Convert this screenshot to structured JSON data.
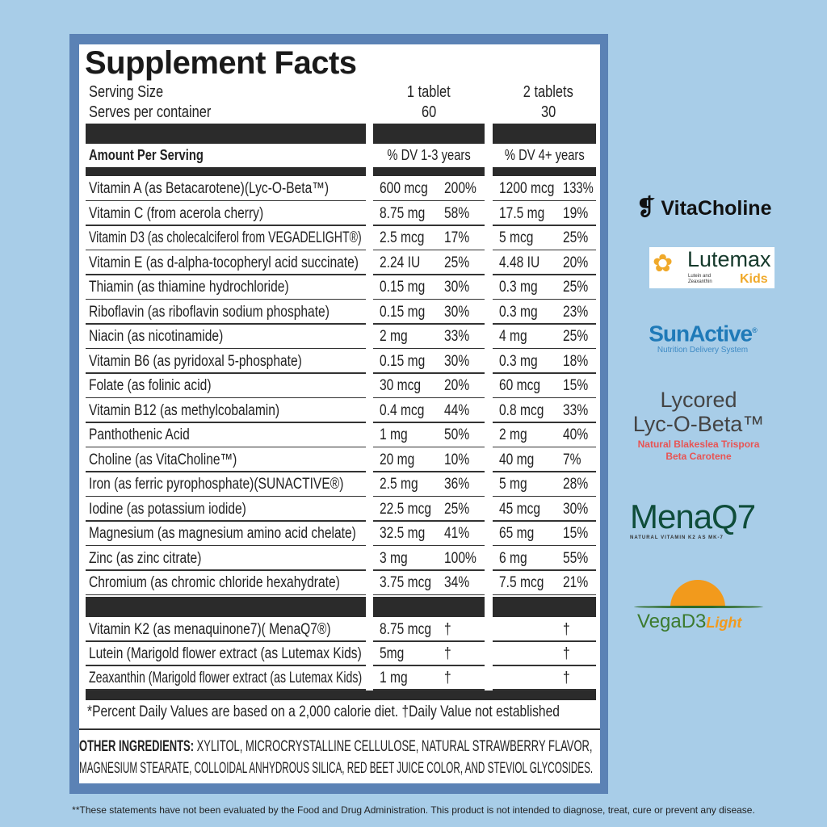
{
  "title": "Supplement Facts",
  "serving": {
    "size_label": "Serving Size",
    "size_1": "1 tablet",
    "size_2": "2 tablets",
    "per_label": "Serves per container",
    "per_1": "60",
    "per_2": "30"
  },
  "header": {
    "amount": "Amount Per Serving",
    "col1": "% DV 1-3 years",
    "col2": "% DV 4+ years"
  },
  "rows": [
    [
      "Vitamin A (as Betacarotene)(Lyc-O-Beta™)",
      "600 mcg",
      "200%",
      "1200 mcg",
      "133%"
    ],
    [
      "Vitamin C (from acerola cherry)",
      "8.75 mg",
      "58%",
      "17.5 mg",
      "19%"
    ],
    [
      "Vitamin D3 (as cholecalciferol from VEGADELIGHT®)",
      "2.5 mcg",
      "17%",
      "5 mcg",
      "25%"
    ],
    [
      "Vitamin E (as d-alpha-tocopheryl acid succinate)",
      "2.24 IU",
      "25%",
      "4.48 IU",
      "20%"
    ],
    [
      "Thiamin (as thiamine hydrochloride)",
      "0.15 mg",
      "30%",
      "0.3 mg",
      "25%"
    ],
    [
      "Riboflavin (as riboflavin sodium phosphate)",
      "0.15 mg",
      "30%",
      "0.3 mg",
      "23%"
    ],
    [
      "Niacin (as nicotinamide)",
      "2 mg",
      "33%",
      "4 mg",
      "25%"
    ],
    [
      "Vitamin B6 (as pyridoxal 5-phosphate)",
      "0.15 mg",
      "30%",
      "0.3 mg",
      "18%"
    ],
    [
      "Folate (as folinic acid)",
      "30 mcg",
      "20%",
      "60 mcg",
      "15%"
    ],
    [
      "Vitamin B12 (as methylcobalamin)",
      "0.4 mcg",
      "44%",
      "0.8 mcg",
      "33%"
    ],
    [
      "Panthothenic Acid",
      "1 mg",
      "50%",
      "2 mg",
      "40%"
    ],
    [
      "Choline (as VitaCholine™)",
      "20 mg",
      "10%",
      "40 mg",
      "7%"
    ],
    [
      "Iron (as ferric pyrophosphate)(SUNACTIVE®)",
      "2.5 mg",
      "36%",
      "5 mg",
      "28%"
    ],
    [
      "Iodine (as potassium iodide)",
      "22.5 mcg",
      "25%",
      "45 mcg",
      "30%"
    ],
    [
      "Magnesium (as magnesium amino acid chelate)",
      "32.5 mg",
      "41%",
      "65 mg",
      "15%"
    ],
    [
      "Zinc (as zinc citrate)",
      "3 mg",
      "100%",
      "6 mg",
      "55%"
    ],
    [
      "Chromium (as chromic chloride hexahydrate)",
      "3.75 mcg",
      "34%",
      "7.5 mcg",
      "21%"
    ]
  ],
  "rows2": [
    [
      "Vitamin K2 (as menaquinone7)( MenaQ7®)",
      "8.75 mcg",
      "†",
      "",
      "†"
    ],
    [
      "Lutein (Marigold flower extract (as Lutemax Kids)",
      "5mg",
      "†",
      "",
      "†"
    ],
    [
      "Zeaxanthin (Marigold flower extract (as Lutemax Kids)",
      "1 mg",
      "†",
      "",
      "†"
    ]
  ],
  "footnote": "*Percent Daily Values are based on a 2,000 calorie diet.  †Daily Value not established",
  "other": {
    "label": "OTHER INGREDIENTS:",
    "line1": " XYLITOL, MICROCRYSTALLINE CELLULOSE, NATURAL STRAWBERRY FLAVOR,",
    "line2": "MAGNESIUM STEARATE, COLLOIDAL ANHYDROUS SILICA, RED BEET JUICE COLOR, AND STEVIOL GLYCOSIDES."
  },
  "logos": {
    "vitacholine": "VitaCholine",
    "lutemax": "Lutemax",
    "lutemax_sub": "Lutein and Zeaxanthin",
    "lutemax_kids": "Kids",
    "sunactive": "SunActive",
    "sunactive_reg": "®",
    "sunactive_sub": "Nutrition Delivery System",
    "lycored": "Lycored",
    "lycobeta": "Lyc-O-Beta™",
    "lyco_sub1": "Natural Blakeslea Trispora",
    "lyco_sub2": "Beta Carotene",
    "menaq7": "MenaQ7",
    "menaq7_sub": "NATURAL VITAMIN K2 AS MK-7",
    "vegad3": "VegaD3",
    "vegad3_light": "Light"
  },
  "disclaimer": "**These statements have not been evaluated by the Food and Drug Administration. This product is not intended to diagnose, treat, cure or prevent any disease."
}
